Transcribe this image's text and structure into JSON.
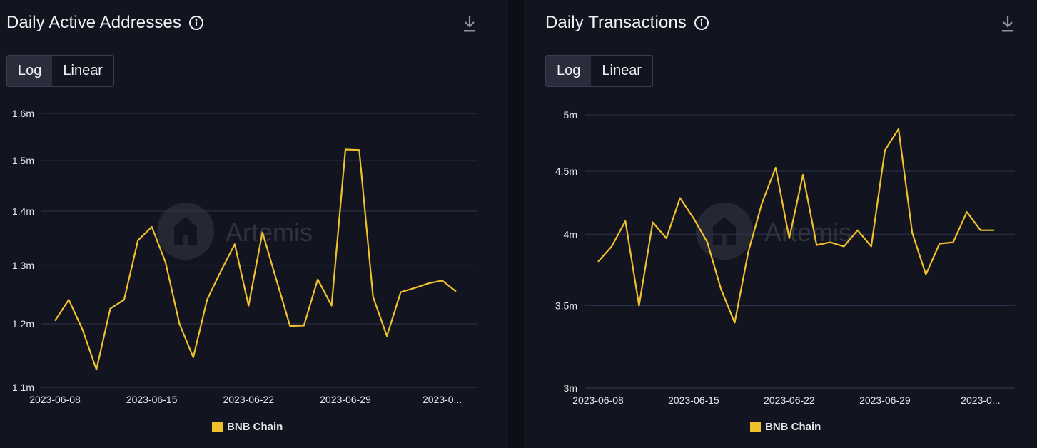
{
  "colors": {
    "series": "#f0c12c",
    "grid": "#2f3350",
    "axis": "#e6e7ec"
  },
  "watermark": "Artemis",
  "charts": [
    {
      "title": "Daily Active Addresses",
      "toggle": {
        "log": "Log",
        "linear": "Linear",
        "selected": "Log"
      },
      "legend": "BNB Chain"
    },
    {
      "title": "Daily Transactions",
      "toggle": {
        "log": "Log",
        "linear": "Linear",
        "selected": "Log"
      },
      "legend": "BNB Chain"
    }
  ],
  "chart_data": [
    {
      "type": "line",
      "title": "Daily Active Addresses",
      "scale": "log",
      "ylim": [
        1.1,
        1.6
      ],
      "yticks": [
        1.1,
        1.2,
        1.3,
        1.4,
        1.5,
        1.6
      ],
      "ytick_labels": [
        "1.1m",
        "1.2m",
        "1.3m",
        "1.4m",
        "1.5m",
        "1.6m"
      ],
      "xtick_labels": [
        "2023-06-08",
        "2023-06-15",
        "2023-06-22",
        "2023-06-29",
        "2023-0..."
      ],
      "xtick_index": [
        0,
        7,
        14,
        21,
        28
      ],
      "x": [
        "2023-06-08",
        "2023-06-09",
        "2023-06-10",
        "2023-06-11",
        "2023-06-12",
        "2023-06-13",
        "2023-06-14",
        "2023-06-15",
        "2023-06-16",
        "2023-06-17",
        "2023-06-18",
        "2023-06-19",
        "2023-06-20",
        "2023-06-21",
        "2023-06-22",
        "2023-06-23",
        "2023-06-24",
        "2023-06-25",
        "2023-06-26",
        "2023-06-27",
        "2023-06-28",
        "2023-06-29",
        "2023-06-30",
        "2023-07-01",
        "2023-07-02",
        "2023-07-03",
        "2023-07-04",
        "2023-07-05",
        "2023-07-06",
        "2023-07-07",
        "2023-07-08"
      ],
      "grid": true,
      "legend_position": "bottom",
      "series": [
        {
          "name": "BNB Chain",
          "values": [
            1.205,
            1.24,
            1.19,
            1.127,
            1.225,
            1.24,
            1.345,
            1.37,
            1.305,
            1.2,
            1.146,
            1.24,
            1.29,
            1.338,
            1.23,
            1.36,
            1.275,
            1.196,
            1.197,
            1.275,
            1.23,
            1.523,
            1.522,
            1.245,
            1.18,
            1.253,
            1.26,
            1.268,
            1.273,
            1.254,
            1.254
          ]
        }
      ]
    },
    {
      "type": "line",
      "title": "Daily Transactions",
      "scale": "log",
      "ylim": [
        3.0,
        5.0
      ],
      "yticks": [
        3.0,
        3.5,
        4.0,
        4.5,
        5.0
      ],
      "ytick_labels": [
        "3m",
        "3.5m",
        "4m",
        "4.5m",
        "5m"
      ],
      "xtick_labels": [
        "2023-06-08",
        "2023-06-15",
        "2023-06-22",
        "2023-06-29",
        "2023-0..."
      ],
      "xtick_index": [
        0,
        7,
        14,
        21,
        28
      ],
      "x": [
        "2023-06-08",
        "2023-06-09",
        "2023-06-10",
        "2023-06-11",
        "2023-06-12",
        "2023-06-13",
        "2023-06-14",
        "2023-06-15",
        "2023-06-16",
        "2023-06-17",
        "2023-06-18",
        "2023-06-19",
        "2023-06-20",
        "2023-06-21",
        "2023-06-22",
        "2023-06-23",
        "2023-06-24",
        "2023-06-25",
        "2023-06-26",
        "2023-06-27",
        "2023-06-28",
        "2023-06-29",
        "2023-06-30",
        "2023-07-01",
        "2023-07-02",
        "2023-07-03",
        "2023-07-04",
        "2023-07-05",
        "2023-07-06",
        "2023-07-07",
        "2023-07-08"
      ],
      "grid": true,
      "legend_position": "bottom",
      "series": [
        {
          "name": "BNB Chain",
          "values": [
            3.8,
            3.91,
            4.1,
            3.5,
            4.09,
            3.97,
            4.28,
            4.12,
            3.94,
            3.61,
            3.39,
            3.87,
            4.24,
            4.53,
            3.97,
            4.47,
            3.92,
            3.94,
            3.91,
            4.03,
            3.91,
            4.68,
            4.87,
            4.01,
            3.71,
            3.93,
            3.94,
            4.17,
            4.03,
            4.03,
            4.03
          ]
        }
      ]
    }
  ]
}
